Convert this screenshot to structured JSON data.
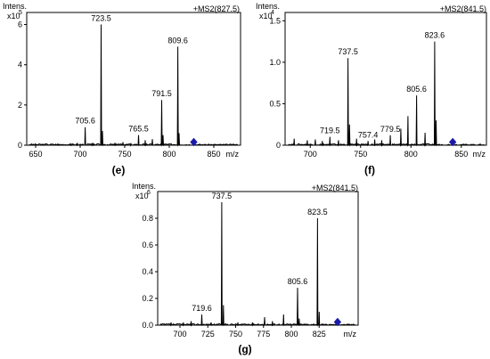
{
  "chart_data": [
    {
      "panel": "(e)",
      "type": "line",
      "y_label": "Intens.",
      "y_multiplier": "x10",
      "y_exponent": "5",
      "scan_label": "+MS2(827.5)",
      "x_unit": "m/z",
      "xlim": [
        640,
        880
      ],
      "ylim": [
        0,
        6.6
      ],
      "x_ticks": [
        650,
        700,
        750,
        800,
        850
      ],
      "y_ticks": [
        0,
        2,
        4,
        6
      ],
      "peaks": [
        {
          "x": 676,
          "y": 0.05
        },
        {
          "x": 690,
          "y": 0.06
        },
        {
          "x": 697,
          "y": 0.08
        },
        {
          "x": 705.6,
          "y": 0.9,
          "label": "705.6"
        },
        {
          "x": 714,
          "y": 0.12
        },
        {
          "x": 723.5,
          "y": 6.0,
          "label": "723.5"
        },
        {
          "x": 725,
          "y": 0.7
        },
        {
          "x": 739,
          "y": 0.12
        },
        {
          "x": 748,
          "y": 0.15
        },
        {
          "x": 757,
          "y": 0.1
        },
        {
          "x": 765.5,
          "y": 0.5,
          "label": "765.5"
        },
        {
          "x": 773,
          "y": 0.25
        },
        {
          "x": 781,
          "y": 0.3
        },
        {
          "x": 791.5,
          "y": 2.25,
          "label": "791.5"
        },
        {
          "x": 793,
          "y": 0.5
        },
        {
          "x": 809.6,
          "y": 4.9,
          "label": "809.6"
        },
        {
          "x": 811,
          "y": 0.6
        }
      ],
      "precursor": 827.5
    },
    {
      "panel": "(f)",
      "type": "line",
      "y_label": "Intens.",
      "y_multiplier": "x10",
      "y_exponent": "4",
      "scan_label": "+MS2(841.5)",
      "x_unit": "m/z",
      "xlim": [
        675,
        875
      ],
      "ylim": [
        0,
        1.6
      ],
      "x_ticks": [
        700,
        750,
        800,
        850
      ],
      "y_ticks": [
        0,
        0.5,
        1.0,
        1.5
      ],
      "y_tick_labels": [
        "0",
        "0.5",
        "1.0",
        "1.5"
      ],
      "peaks": [
        {
          "x": 684,
          "y": 0.08
        },
        {
          "x": 697,
          "y": 0.06
        },
        {
          "x": 705,
          "y": 0.07
        },
        {
          "x": 712,
          "y": 0.05
        },
        {
          "x": 719.5,
          "y": 0.1,
          "label": "719.5"
        },
        {
          "x": 728,
          "y": 0.06
        },
        {
          "x": 737.5,
          "y": 1.05,
          "label": "737.5"
        },
        {
          "x": 739,
          "y": 0.25
        },
        {
          "x": 746,
          "y": 0.08
        },
        {
          "x": 757.4,
          "y": 0.05,
          "label": "757.4"
        },
        {
          "x": 764,
          "y": 0.07
        },
        {
          "x": 771,
          "y": 0.06
        },
        {
          "x": 779.5,
          "y": 0.12,
          "label": "779.5"
        },
        {
          "x": 790,
          "y": 0.2
        },
        {
          "x": 797,
          "y": 0.35
        },
        {
          "x": 805.6,
          "y": 0.6,
          "label": "805.6"
        },
        {
          "x": 814,
          "y": 0.15
        },
        {
          "x": 823.6,
          "y": 1.25,
          "label": "823.6"
        },
        {
          "x": 825,
          "y": 0.3
        }
      ],
      "precursor": 841.5
    },
    {
      "panel": "(g)",
      "type": "line",
      "y_label": "Intens.",
      "y_multiplier": "x10",
      "y_exponent": "6",
      "scan_label": "+MS2(841.5)",
      "x_unit": "m/z",
      "xlim": [
        680,
        860
      ],
      "ylim": [
        0,
        1.0
      ],
      "x_ticks": [
        700,
        725,
        750,
        775,
        800,
        825
      ],
      "y_ticks": [
        0,
        0.2,
        0.4,
        0.6,
        0.8
      ],
      "y_tick_labels": [
        "0.0",
        "0.2",
        "0.4",
        "0.6",
        "0.8"
      ],
      "peaks": [
        {
          "x": 692,
          "y": 0.02
        },
        {
          "x": 703,
          "y": 0.02
        },
        {
          "x": 710,
          "y": 0.03
        },
        {
          "x": 719.6,
          "y": 0.08,
          "label": "719.6"
        },
        {
          "x": 728,
          "y": 0.02
        },
        {
          "x": 737.5,
          "y": 0.92,
          "label": "737.5"
        },
        {
          "x": 739,
          "y": 0.15
        },
        {
          "x": 752,
          "y": 0.02
        },
        {
          "x": 765,
          "y": 0.02
        },
        {
          "x": 776,
          "y": 0.06
        },
        {
          "x": 783,
          "y": 0.03
        },
        {
          "x": 793,
          "y": 0.08
        },
        {
          "x": 805.6,
          "y": 0.28,
          "label": "805.6"
        },
        {
          "x": 807,
          "y": 0.05
        },
        {
          "x": 823.5,
          "y": 0.8,
          "label": "823.5"
        },
        {
          "x": 825,
          "y": 0.1
        }
      ],
      "precursor": 841.5
    }
  ],
  "colors": {
    "trace": "#000000",
    "axis": "#000000",
    "precursor_marker": "#1a1aa8"
  }
}
